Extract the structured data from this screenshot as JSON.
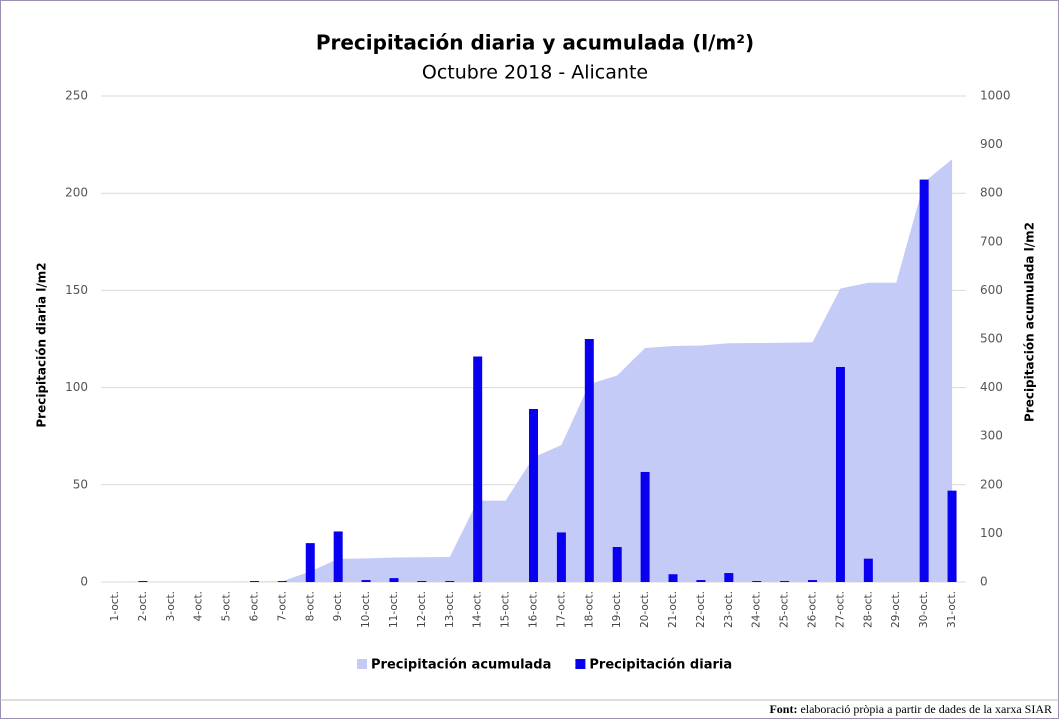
{
  "chart_data": {
    "type": "bar",
    "title": "Precipitación diaria y acumulada (l/m²)",
    "subtitle": "Octubre 2018 - Alicante",
    "y_label": "Precipitación diaria l/m2",
    "y2_label": "Precipitación acumulada l/m2",
    "categories": [
      "1-oct.",
      "2-oct.",
      "3-oct.",
      "4-oct.",
      "5-oct.",
      "6-oct.",
      "7-oct.",
      "8-oct.",
      "9-oct.",
      "10-oct.",
      "11-oct.",
      "12-oct.",
      "13-oct.",
      "14-oct.",
      "15-oct.",
      "16-oct.",
      "17-oct.",
      "18-oct.",
      "19-oct.",
      "20-oct.",
      "21-oct.",
      "22-oct.",
      "23-oct.",
      "24-oct.",
      "25-oct.",
      "26-oct.",
      "27-oct.",
      "28-oct.",
      "29-oct.",
      "30-oct.",
      "31-oct."
    ],
    "series": [
      {
        "name": "Precipitación acumulada",
        "type": "area",
        "axis": "y2",
        "color": "#c5cbf7",
        "values": [
          0,
          0.5,
          0.5,
          0.5,
          0.5,
          1,
          1.5,
          21.5,
          47.5,
          48.5,
          50.5,
          51,
          51.5,
          167.5,
          167.5,
          256.5,
          282,
          407,
          425,
          481.6,
          485.6,
          486.6,
          491.2,
          491.7,
          492.2,
          493.2,
          603.8,
          615.8,
          615.8,
          822.8,
          869.8
        ]
      },
      {
        "name": "Precipitación diaria",
        "type": "bar",
        "color": "#0a00f0",
        "values": [
          0,
          0.5,
          0,
          0,
          0,
          0.5,
          0.5,
          20,
          26,
          1,
          2,
          0.5,
          0.5,
          116,
          0,
          89,
          25.5,
          125,
          18,
          56.6,
          4,
          1,
          4.6,
          0.5,
          0.5,
          1,
          110.6,
          12,
          0,
          207,
          47
        ]
      }
    ],
    "ylim": [
      0,
      250
    ],
    "yticks": [
      0,
      50,
      100,
      150,
      200,
      250
    ],
    "y2lim": [
      0,
      1000
    ],
    "y2ticks": [
      0,
      100,
      200,
      300,
      400,
      500,
      600,
      700,
      800,
      900,
      1000
    ],
    "grid": true,
    "legend": "bottom",
    "source_label": "Font:",
    "source_text": "elaboració pròpia a partir de dades de la xarxa SIAR"
  }
}
